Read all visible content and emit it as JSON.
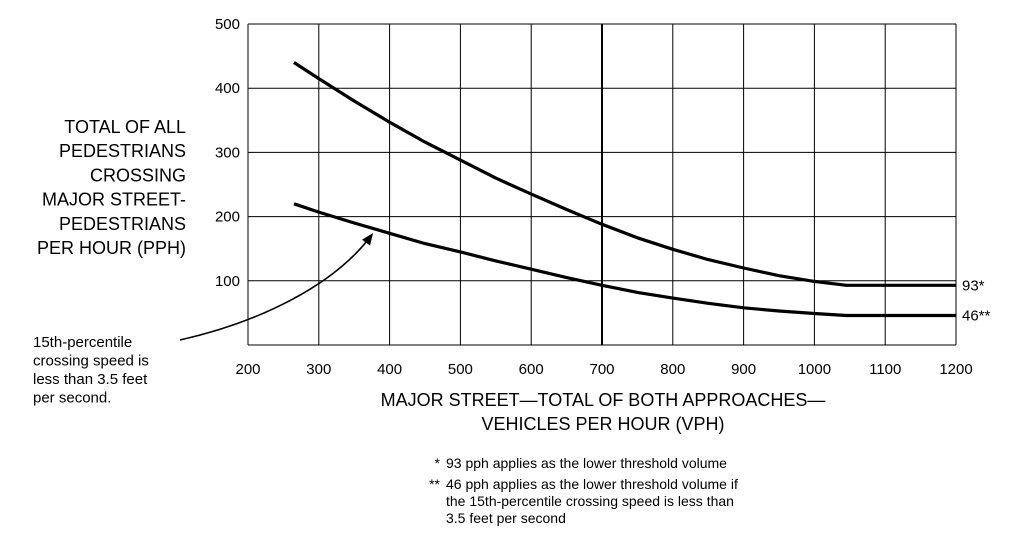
{
  "chart_data": {
    "type": "line",
    "title": "",
    "xlabel_lines": [
      "MAJOR STREET—TOTAL OF BOTH APPROACHES—",
      "VEHICLES PER HOUR (VPH)"
    ],
    "ylabel_lines": [
      "TOTAL OF ALL",
      "PEDESTRIANS",
      "CROSSING",
      "MAJOR STREET-",
      "PEDESTRIANS",
      "PER HOUR (PPH)"
    ],
    "xlim": [
      200,
      1200
    ],
    "ylim": [
      0,
      500
    ],
    "xticks": [
      200,
      300,
      400,
      500,
      600,
      700,
      800,
      900,
      1000,
      1100,
      1200
    ],
    "yticks": [
      100,
      200,
      300,
      400,
      500
    ],
    "x_tick_labels": [
      "200",
      "300",
      "400",
      "500",
      "600",
      "700",
      "800",
      "900",
      "1000",
      "1100",
      "1200"
    ],
    "y_tick_labels": [
      "100",
      "200",
      "300",
      "400",
      "500"
    ],
    "grid": true,
    "highlight_x": 700,
    "series": [
      {
        "end_label": "93*",
        "points": [
          [
            265,
            440
          ],
          [
            300,
            415
          ],
          [
            350,
            380
          ],
          [
            400,
            347
          ],
          [
            450,
            316
          ],
          [
            500,
            288
          ],
          [
            550,
            260
          ],
          [
            600,
            235
          ],
          [
            650,
            211
          ],
          [
            700,
            188
          ],
          [
            750,
            167
          ],
          [
            800,
            149
          ],
          [
            850,
            133
          ],
          [
            900,
            120
          ],
          [
            950,
            108
          ],
          [
            1000,
            99
          ],
          [
            1045,
            93
          ],
          [
            1200,
            93
          ]
        ]
      },
      {
        "end_label": "46**",
        "points": [
          [
            265,
            220
          ],
          [
            300,
            207
          ],
          [
            350,
            190
          ],
          [
            400,
            174
          ],
          [
            450,
            158
          ],
          [
            500,
            145
          ],
          [
            550,
            131
          ],
          [
            600,
            118
          ],
          [
            650,
            105
          ],
          [
            700,
            93
          ],
          [
            750,
            82
          ],
          [
            800,
            73
          ],
          [
            850,
            65
          ],
          [
            900,
            58
          ],
          [
            950,
            53
          ],
          [
            1000,
            49
          ],
          [
            1045,
            46
          ],
          [
            1200,
            46
          ]
        ]
      }
    ],
    "annotation": {
      "lines": [
        "15th-percentile",
        "crossing speed is",
        "less than 3.5 feet",
        "per second."
      ],
      "points_to": [
        375,
        172
      ]
    },
    "footnotes": [
      {
        "marker": "*",
        "lines": [
          "93 pph applies as the lower threshold volume"
        ]
      },
      {
        "marker": "**",
        "lines": [
          "46 pph applies as the lower threshold volume if",
          "the 15th-percentile crossing speed is less than",
          "3.5 feet per second"
        ]
      }
    ]
  }
}
